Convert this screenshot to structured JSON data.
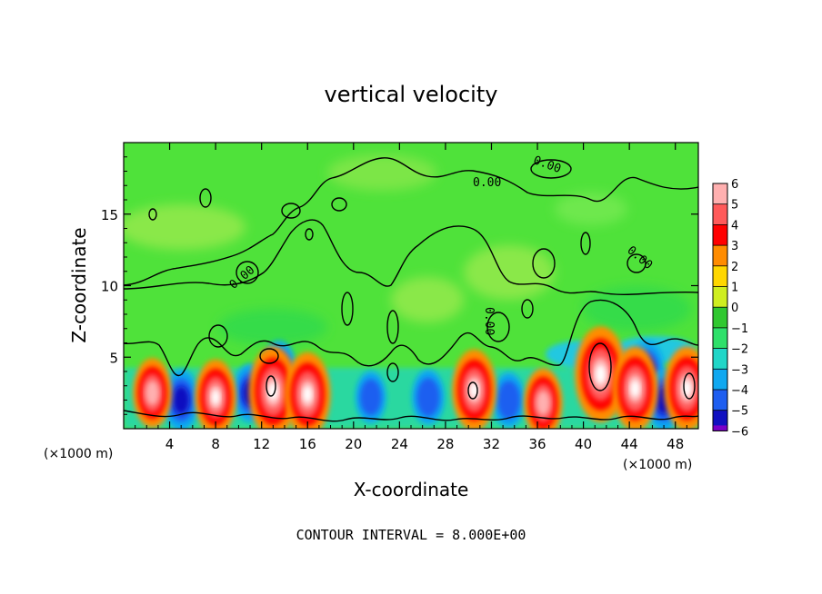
{
  "chart_data": {
    "type": "heatmap",
    "title": "vertical velocity",
    "xlabel": "X-coordinate",
    "ylabel": "Z-coordinate",
    "x_unit": "(×1000 m)",
    "y_unit": "(×1000 m)",
    "xlim": [
      0,
      50
    ],
    "ylim": [
      0,
      20
    ],
    "x_ticks": [
      4,
      8,
      12,
      16,
      20,
      24,
      28,
      32,
      36,
      40,
      44,
      48
    ],
    "y_ticks": [
      5,
      10,
      15
    ],
    "colorbar": {
      "ticks": [
        6,
        5,
        4,
        3,
        2,
        1,
        0,
        -1,
        -2,
        -3,
        -4,
        -5,
        -6
      ],
      "colors": [
        "#ffb0b0",
        "#ff5a5a",
        "#ff0000",
        "#ff8c00",
        "#ffd700",
        "#cfee20",
        "#30c830",
        "#2ee06a",
        "#20d6c8",
        "#10a8f0",
        "#1e5ef0",
        "#1010c0",
        "#7a00c8"
      ]
    },
    "contour_labels": [
      "0.00",
      "0.00",
      "0.00",
      "0.00",
      "0.00"
    ],
    "updrafts": [
      {
        "x": 2.5,
        "z": 2.5,
        "w": 4.5
      },
      {
        "x": 8,
        "z": 2.2,
        "w": 5.5
      },
      {
        "x": 13,
        "z": 2.6,
        "w": 8
      },
      {
        "x": 16,
        "z": 2.4,
        "w": 7
      },
      {
        "x": 30.5,
        "z": 2.7,
        "w": 6.5
      },
      {
        "x": 36.5,
        "z": 1.8,
        "w": 4.5
      },
      {
        "x": 41.5,
        "z": 3.8,
        "w": 9
      },
      {
        "x": 44.5,
        "z": 2.8,
        "w": 7
      },
      {
        "x": 49,
        "z": 2.8,
        "w": 7
      }
    ],
    "downdrafts": [
      {
        "x": 5,
        "z": 2.0,
        "w": -4
      },
      {
        "x": 11,
        "z": 2.5,
        "w": -3.5
      },
      {
        "x": 13.5,
        "z": 4.0,
        "w": -4
      },
      {
        "x": 21.5,
        "z": 2.2,
        "w": -2.5
      },
      {
        "x": 26.5,
        "z": 2.2,
        "w": -3
      },
      {
        "x": 33.5,
        "z": 2.0,
        "w": -3
      },
      {
        "x": 45.5,
        "z": 4.0,
        "w": -4
      },
      {
        "x": 47,
        "z": 2.0,
        "w": -4
      }
    ]
  },
  "footer": {
    "contour_interval": "CONTOUR INTERVAL = 8.000E+00"
  }
}
